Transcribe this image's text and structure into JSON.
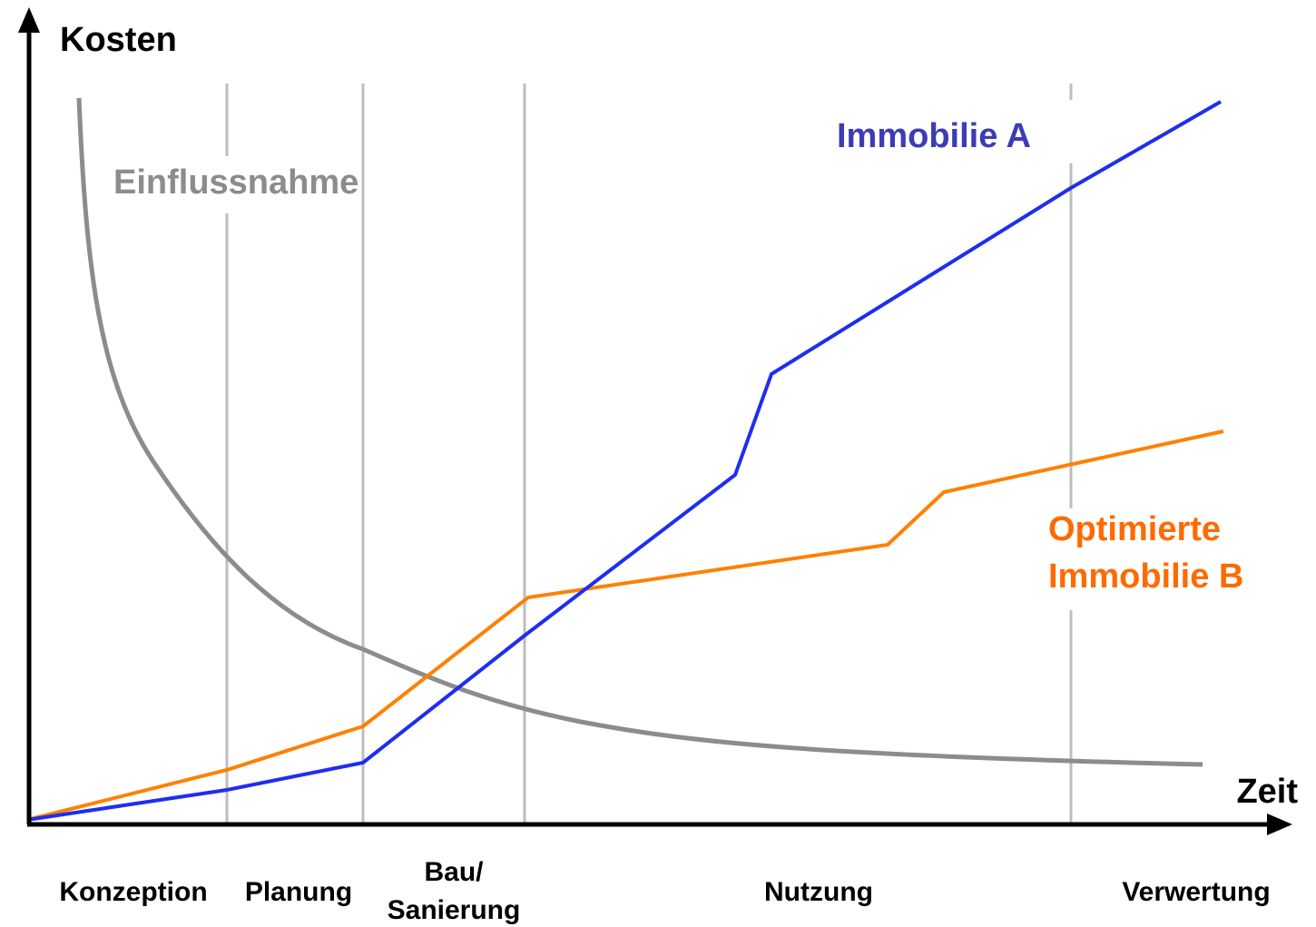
{
  "axes": {
    "y_label": "Kosten",
    "x_label": "Zeit"
  },
  "curves": [
    {
      "label": [
        "Einflussnahme"
      ]
    },
    {
      "label": [
        "Immobilie A"
      ]
    },
    {
      "label": [
        "Optimierte",
        "Immobilie B"
      ]
    }
  ],
  "phases": [
    [
      "Konzeption"
    ],
    [
      "Planung"
    ],
    [
      "Bau/",
      "Sanierung"
    ],
    [
      "Nutzung"
    ],
    [
      "Verwertung"
    ]
  ]
}
